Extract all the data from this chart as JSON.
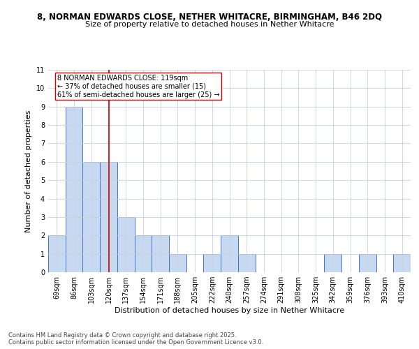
{
  "title1": "8, NORMAN EDWARDS CLOSE, NETHER WHITACRE, BIRMINGHAM, B46 2DQ",
  "title2": "Size of property relative to detached houses in Nether Whitacre",
  "xlabel": "Distribution of detached houses by size in Nether Whitacre",
  "ylabel": "Number of detached properties",
  "categories": [
    "69sqm",
    "86sqm",
    "103sqm",
    "120sqm",
    "137sqm",
    "154sqm",
    "171sqm",
    "188sqm",
    "205sqm",
    "222sqm",
    "240sqm",
    "257sqm",
    "274sqm",
    "291sqm",
    "308sqm",
    "325sqm",
    "342sqm",
    "359sqm",
    "376sqm",
    "393sqm",
    "410sqm"
  ],
  "values": [
    2,
    9,
    6,
    6,
    3,
    2,
    2,
    1,
    0,
    1,
    2,
    1,
    0,
    0,
    0,
    0,
    1,
    0,
    1,
    0,
    1
  ],
  "bar_color": "#c6d9f0",
  "bar_edge_color": "#4472c4",
  "vline_x_index": 3,
  "vline_color": "#cc0000",
  "annotation_text": "8 NORMAN EDWARDS CLOSE: 119sqm\n← 37% of detached houses are smaller (15)\n61% of semi-detached houses are larger (25) →",
  "annotation_box_color": "#ffffff",
  "annotation_box_edge": "#cc0000",
  "ylim": [
    0,
    11
  ],
  "yticks": [
    0,
    1,
    2,
    3,
    4,
    5,
    6,
    7,
    8,
    9,
    10,
    11
  ],
  "footer": "Contains HM Land Registry data © Crown copyright and database right 2025.\nContains public sector information licensed under the Open Government Licence v3.0.",
  "bg_color": "#ffffff",
  "grid_color": "#c8d0dc",
  "title1_fontsize": 8.5,
  "title2_fontsize": 8,
  "axis_label_fontsize": 8,
  "tick_fontsize": 7,
  "footer_fontsize": 6,
  "annotation_fontsize": 7
}
